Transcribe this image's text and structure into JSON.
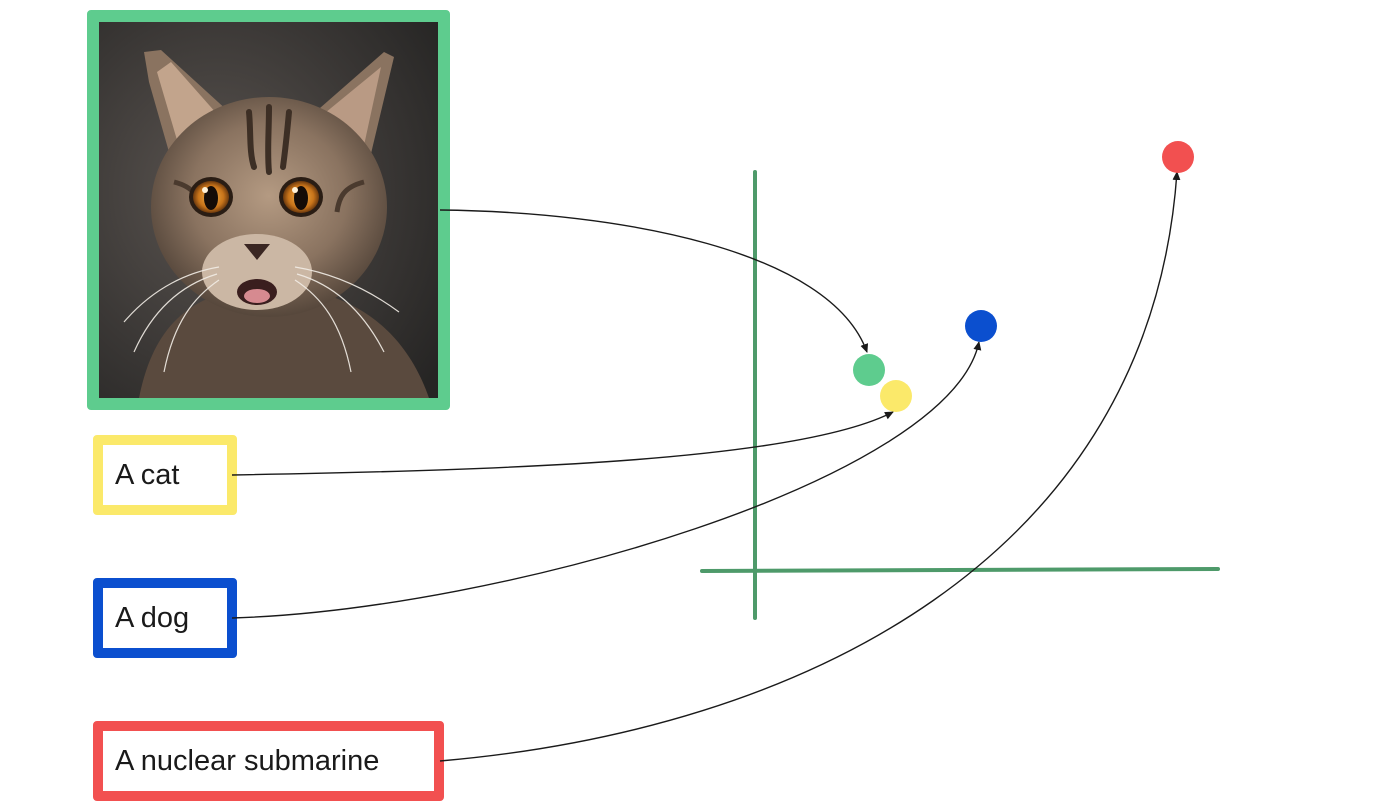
{
  "image": {
    "subject": "cat-photo",
    "frame_color": "#5ecc8e"
  },
  "inputs": [
    {
      "id": "cat",
      "label": "A cat",
      "color": "#fbe96a"
    },
    {
      "id": "dog",
      "label": "A dog",
      "color": "#0b4fcf"
    },
    {
      "id": "sub",
      "label": "A nuclear submarine",
      "color": "#f25050"
    }
  ],
  "points": [
    {
      "id": "image",
      "color": "#5ecc8e"
    },
    {
      "id": "cat",
      "color": "#fbe96a"
    },
    {
      "id": "dog",
      "color": "#0b4fcf"
    },
    {
      "id": "sub",
      "color": "#f25050"
    }
  ],
  "axes": {
    "color": "#4e9a6a"
  },
  "arrow_color": "#1a1a1a"
}
